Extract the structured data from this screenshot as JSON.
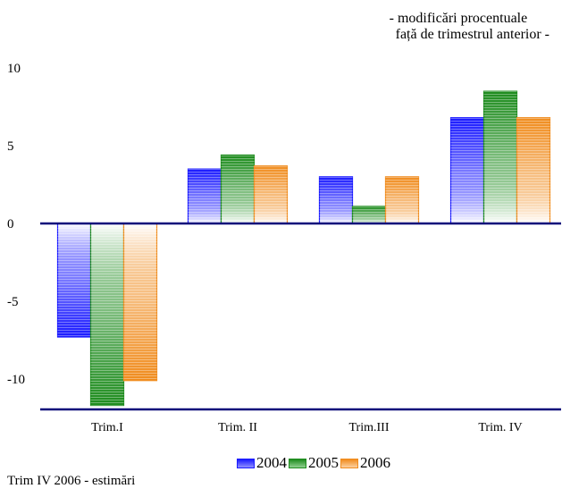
{
  "chart_data": {
    "type": "bar",
    "subtitle_lines": [
      "- modificări procentuale",
      "față de trimestrul anterior -"
    ],
    "categories": [
      "Trim.I",
      "Trim. II",
      "Trim.III",
      "Trim. IV"
    ],
    "series": [
      {
        "name": "2004",
        "values": [
          -7.3,
          3.5,
          3.0,
          6.8
        ],
        "color": "#1a1aff",
        "light": "#ffffff"
      },
      {
        "name": "2005",
        "values": [
          -11.7,
          4.4,
          1.1,
          8.5
        ],
        "color": "#1e8c1e",
        "light": "#ffffff"
      },
      {
        "name": "2006",
        "values": [
          -10.1,
          3.7,
          3.0,
          6.8
        ],
        "color": "#f08c1e",
        "light": "#ffffff"
      }
    ],
    "y_ticks": [
      "10",
      "5",
      "0",
      "-5",
      "-10"
    ],
    "ylim": [
      -12,
      10
    ],
    "grid": false,
    "legend_position": "bottom",
    "note": "Trim IV 2006 - estimări"
  }
}
